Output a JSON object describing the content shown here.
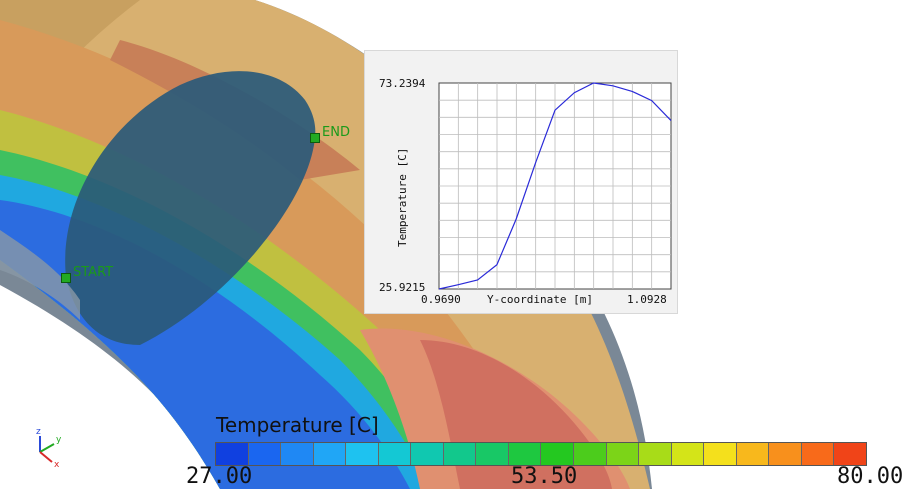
{
  "scene": {
    "probe_start_label": "START",
    "probe_end_label": "END",
    "axes_triad": {
      "x": "x",
      "y": "y",
      "z": "z"
    }
  },
  "chart_data": {
    "type": "line",
    "xlabel": "Y-coordinate [m]",
    "ylabel": "Temperature [C]",
    "x_min_label": "0.9690",
    "x_max_label": "1.0928",
    "y_min_label": "25.9215",
    "y_max_label": "73.2394",
    "xlim": [
      0.969,
      1.0928
    ],
    "ylim": [
      25.9215,
      73.2394
    ],
    "grid": true,
    "series": [
      {
        "x": [
          0.969,
          0.9793,
          0.9896,
          0.9999,
          1.0102,
          1.0206,
          1.0309,
          1.0412,
          1.0515,
          1.0618,
          1.0721,
          1.0825,
          1.0928
        ],
        "y": [
          25.92,
          26.9,
          28.0,
          31.5,
          42.0,
          55.0,
          67.0,
          71.0,
          73.24,
          72.6,
          71.3,
          69.2,
          64.6
        ],
        "color": "#2a2ad8"
      }
    ]
  },
  "legend": {
    "title": "Temperature [C]",
    "min_label": "27.00",
    "mid_label": "53.50",
    "max_label": "80.00",
    "colors": [
      "#1040e0",
      "#1a66f0",
      "#1f88f4",
      "#20a6f6",
      "#1ec2f0",
      "#14c8d4",
      "#10c8b0",
      "#12c88c",
      "#18c866",
      "#1ec840",
      "#24c820",
      "#4ccc1c",
      "#7cd418",
      "#a8dc18",
      "#d4e418",
      "#f4e01c",
      "#f8b81c",
      "#f8901c",
      "#f86a1a",
      "#f04418"
    ]
  },
  "colors": {
    "plot_line": "#2a2ad8",
    "probe": "#22aa22",
    "panel_bg": "#f2f2f2"
  }
}
